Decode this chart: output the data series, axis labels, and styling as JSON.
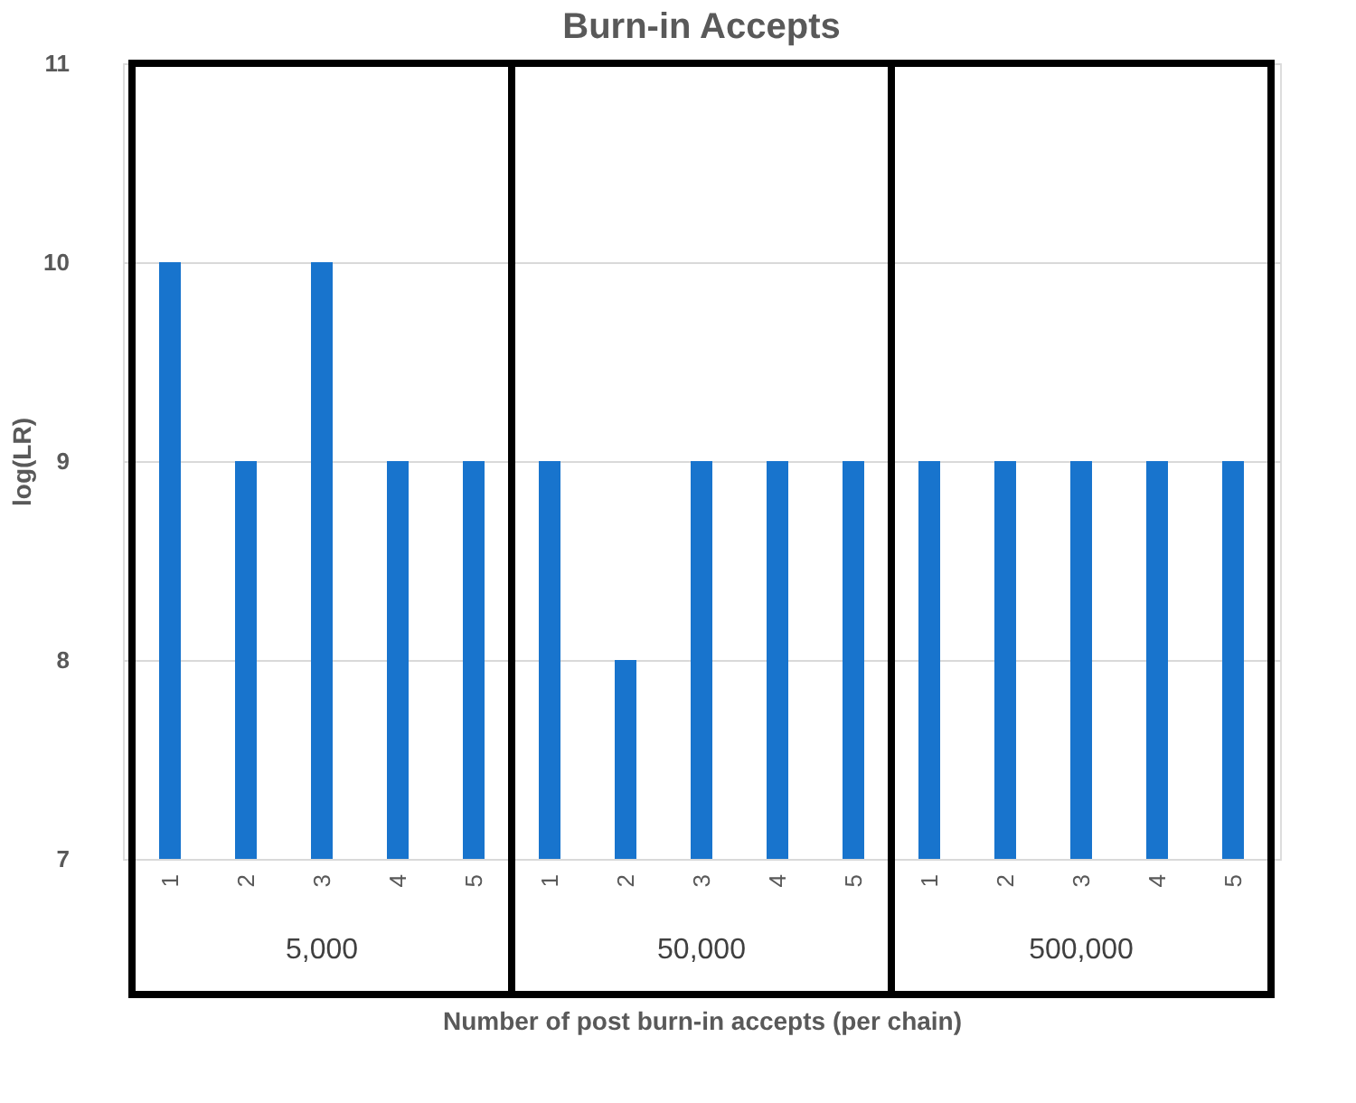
{
  "chart_data": {
    "type": "bar",
    "title": "Burn-in Accepts",
    "xlabel": "Number of post burn-in accepts (per chain)",
    "ylabel": "log(LR)",
    "categories": [
      "1",
      "2",
      "3",
      "4",
      "5",
      "1",
      "2",
      "3",
      "4",
      "5",
      "1",
      "2",
      "3",
      "4",
      "5"
    ],
    "values": [
      10,
      9,
      10,
      9,
      9,
      9,
      8,
      9,
      9,
      9,
      9,
      9,
      9,
      9,
      9
    ],
    "color": "#1874cd",
    "annotations": [
      "5,000",
      "50,000",
      "500,000"
    ],
    "ylim": [
      7,
      11
    ],
    "yticks": [
      7,
      8,
      9,
      10,
      11
    ],
    "grid": "y"
  }
}
